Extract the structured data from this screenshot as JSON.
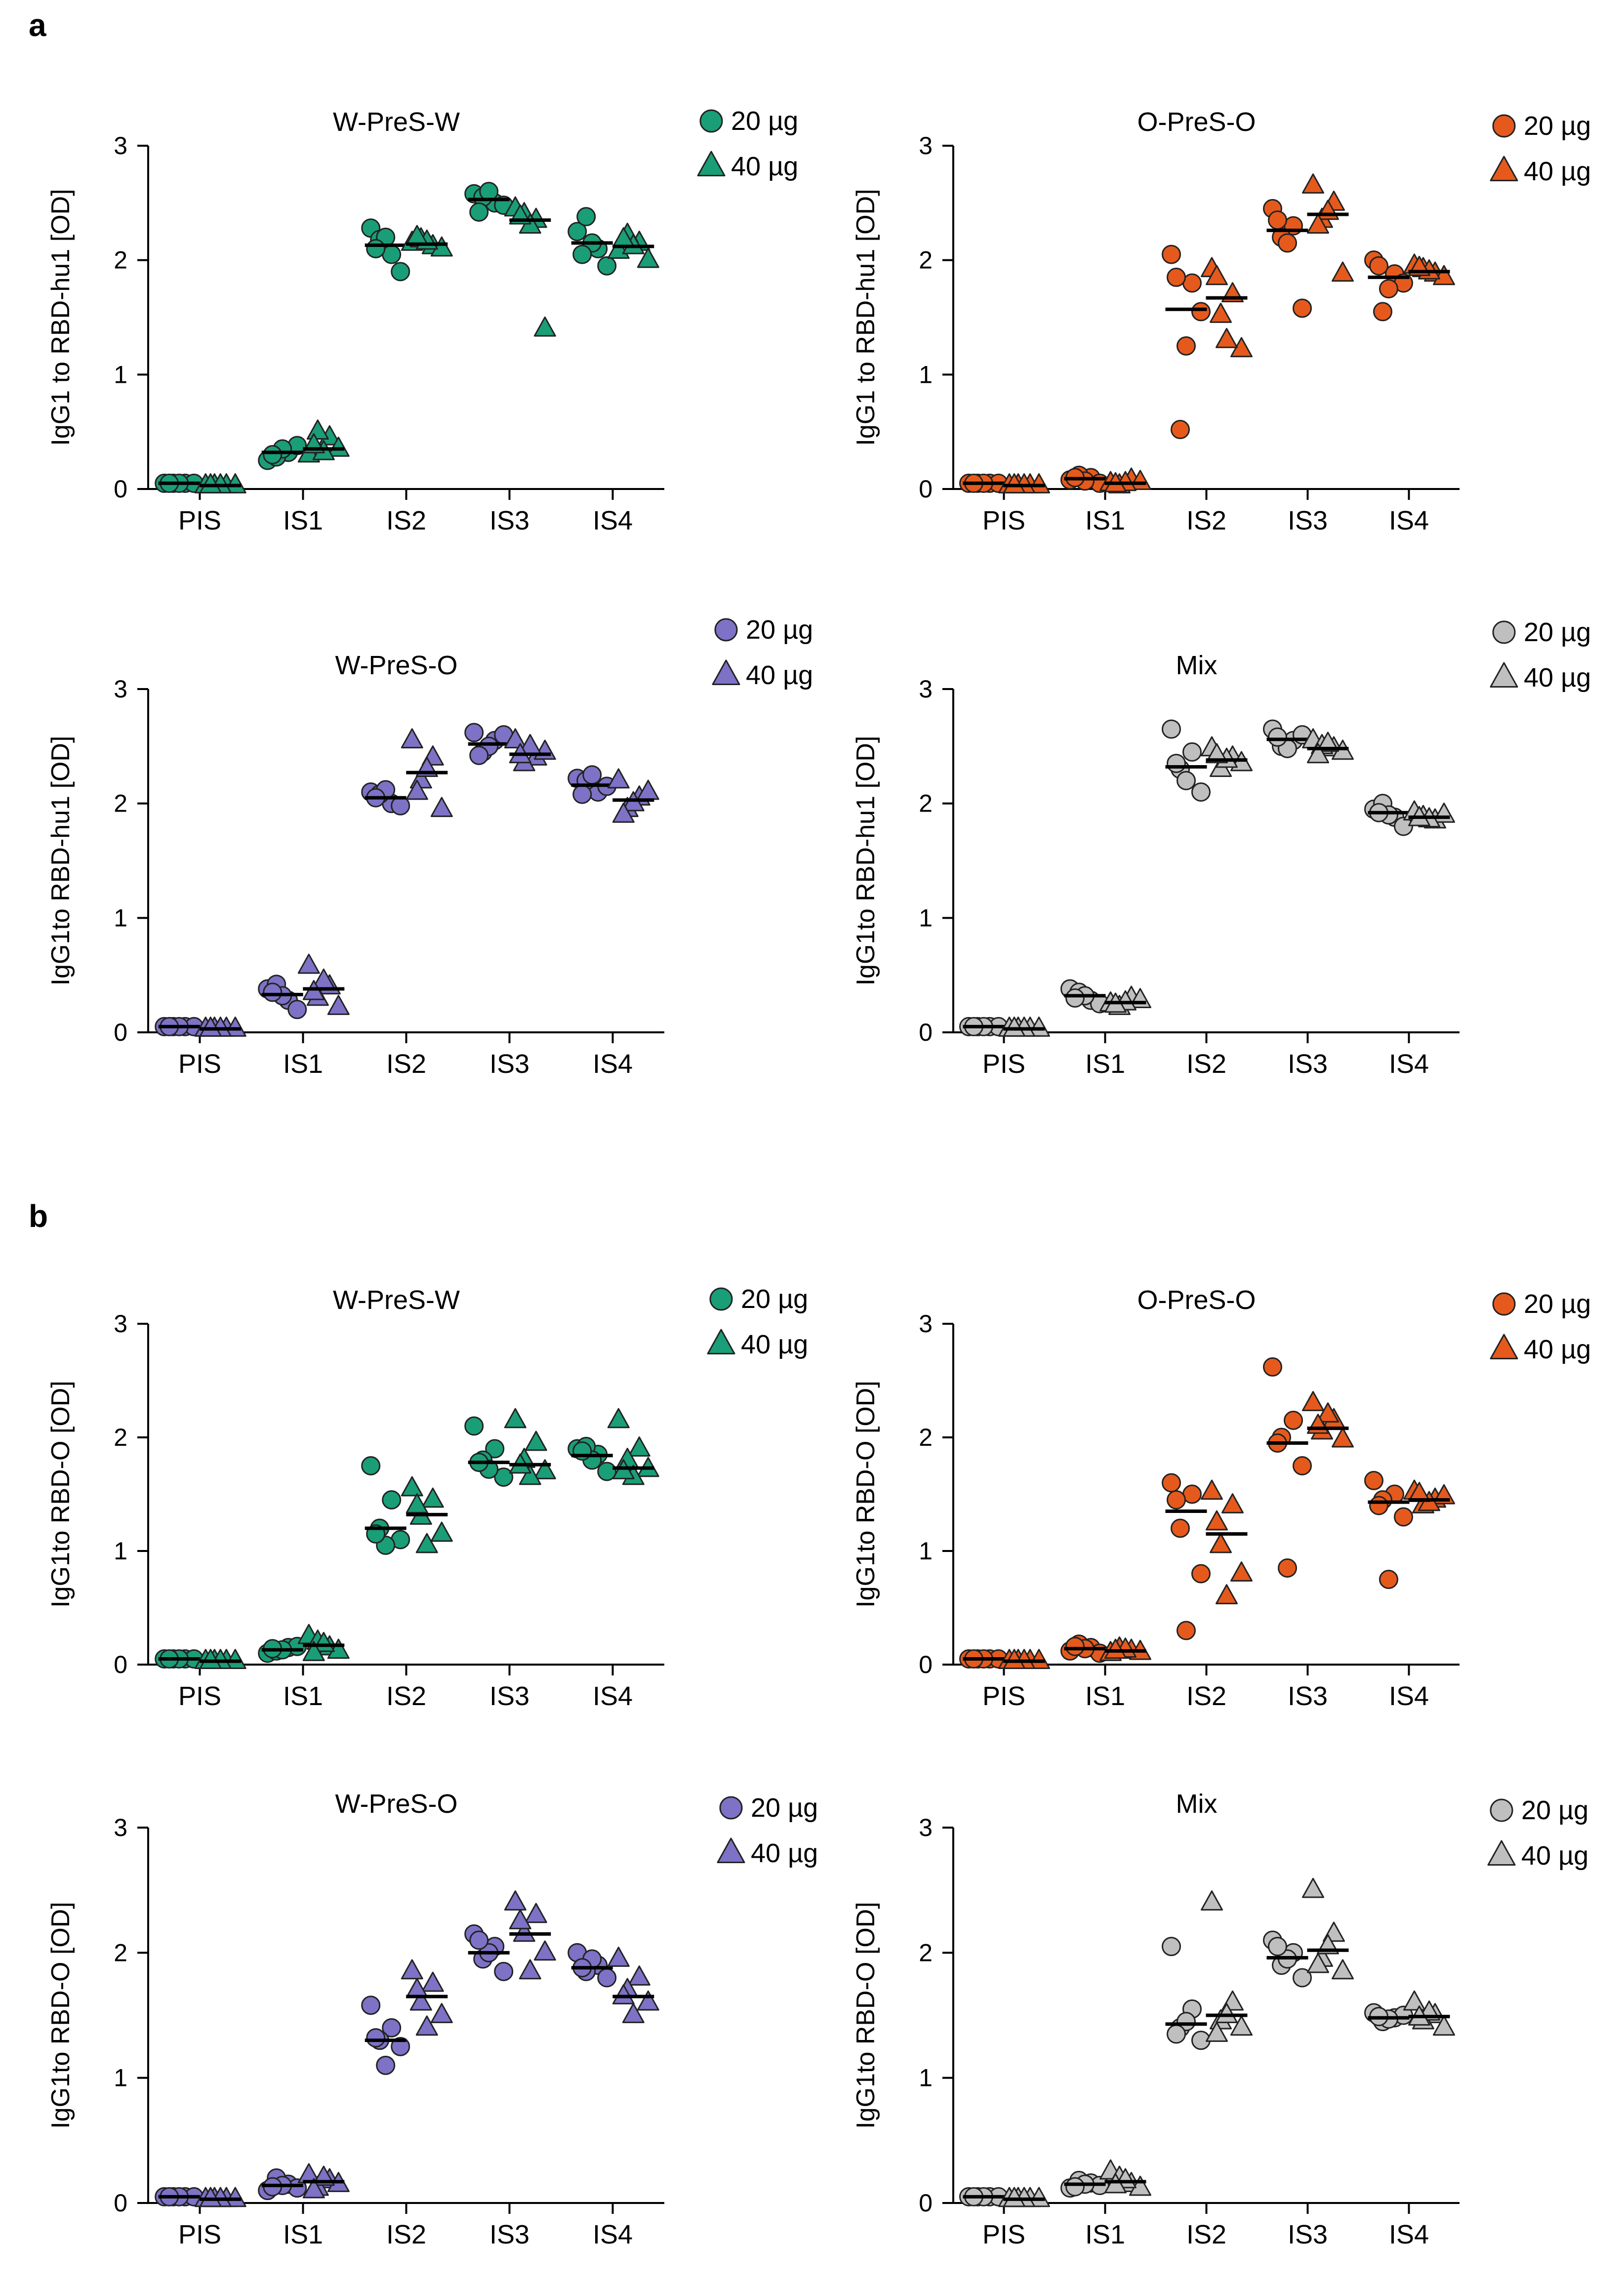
{
  "figure": {
    "panel_labels": [
      "a",
      "b"
    ],
    "categories": [
      "PIS",
      "IS1",
      "IS2",
      "IS3",
      "IS4"
    ],
    "legend_20": "20 µg",
    "legend_40": "40 µg",
    "colors": {
      "green": "#1a9e77",
      "orange": "#e55a1c",
      "purple": "#7d72c6",
      "grey": "#bfbfbf",
      "outline": "#222222"
    }
  },
  "chart_data": [
    {
      "type": "scatter",
      "panel": "a",
      "title": "W-PreS-W",
      "ylabel": "IgG1 to RBD-hu1 [OD]",
      "color": "green",
      "ylim": [
        0,
        3
      ],
      "yticks": [
        0,
        1,
        2,
        3
      ],
      "categories": [
        "PIS",
        "IS1",
        "IS2",
        "IS3",
        "IS4"
      ],
      "series": [
        {
          "name": "20 µg",
          "marker": "circle",
          "values": [
            [
              0.05,
              0.05,
              0.05,
              0.05,
              0.05,
              0.05
            ],
            [
              0.25,
              0.32,
              0.28,
              0.38,
              0.35,
              0.3
            ],
            [
              2.28,
              2.05,
              2.18,
              1.9,
              2.2,
              2.1
            ],
            [
              2.58,
              2.5,
              2.55,
              2.48,
              2.6,
              2.42
            ],
            [
              2.25,
              2.1,
              2.38,
              1.95,
              2.15,
              2.05
            ]
          ],
          "means": [
            0.05,
            0.32,
            2.13,
            2.53,
            2.15
          ]
        },
        {
          "name": "40 µg",
          "marker": "triangle",
          "values": [
            [
              0.03,
              0.03,
              0.03,
              0.03,
              0.03,
              0.03
            ],
            [
              0.3,
              0.45,
              0.5,
              0.35,
              0.32,
              0.38
            ],
            [
              2.15,
              2.12,
              2.18,
              2.1,
              2.16,
              2.2
            ],
            [
              2.45,
              2.35,
              2.4,
              1.4,
              2.3,
              2.38
            ],
            [
              2.08,
              2.15,
              2.22,
              2.0,
              2.12,
              2.18
            ]
          ],
          "means": [
            0.03,
            0.35,
            2.14,
            2.35,
            2.12
          ]
        }
      ]
    },
    {
      "type": "scatter",
      "panel": "a",
      "title": "O-PreS-O",
      "ylabel": "IgG1 to RBD-hu1 [OD]",
      "color": "orange",
      "ylim": [
        0,
        3
      ],
      "yticks": [
        0,
        1,
        2,
        3
      ],
      "categories": [
        "PIS",
        "IS1",
        "IS2",
        "IS3",
        "IS4"
      ],
      "series": [
        {
          "name": "20 µg",
          "marker": "circle",
          "values": [
            [
              0.05,
              0.05,
              0.05,
              0.05,
              0.05,
              0.05
            ],
            [
              0.08,
              0.1,
              0.12,
              0.05,
              0.07,
              0.1
            ],
            [
              2.05,
              1.8,
              0.52,
              1.55,
              1.25,
              1.85
            ],
            [
              2.45,
              2.3,
              2.2,
              1.58,
              2.15,
              2.35
            ],
            [
              2.0,
              1.88,
              1.55,
              1.8,
              1.75,
              1.95
            ]
          ],
          "means": [
            0.05,
            0.09,
            1.57,
            2.26,
            1.85
          ]
        },
        {
          "name": "40 µg",
          "marker": "triangle",
          "values": [
            [
              0.03,
              0.03,
              0.03,
              0.03,
              0.03,
              0.03
            ],
            [
              0.05,
              0.08,
              0.03,
              0.06,
              0.05,
              0.04
            ],
            [
              1.92,
              1.7,
              1.52,
              1.22,
              1.3,
              1.85
            ],
            [
              2.65,
              2.5,
              2.35,
              1.88,
              2.42,
              2.3
            ],
            [
              1.95,
              1.88,
              1.92,
              1.85,
              1.9,
              1.93
            ]
          ],
          "means": [
            0.03,
            0.05,
            1.67,
            2.4,
            1.9
          ]
        }
      ]
    },
    {
      "type": "scatter",
      "panel": "a",
      "title": "W-PreS-O",
      "ylabel": "IgG1to RBD-hu1 [OD]",
      "color": "purple",
      "ylim": [
        0,
        3
      ],
      "yticks": [
        0,
        1,
        2,
        3
      ],
      "categories": [
        "PIS",
        "IS1",
        "IS2",
        "IS3",
        "IS4"
      ],
      "series": [
        {
          "name": "20 µg",
          "marker": "circle",
          "values": [
            [
              0.05,
              0.05,
              0.05,
              0.05,
              0.05,
              0.05
            ],
            [
              0.38,
              0.28,
              0.42,
              0.2,
              0.32,
              0.35
            ],
            [
              2.1,
              2.0,
              2.08,
              1.98,
              2.12,
              2.05
            ],
            [
              2.62,
              2.55,
              2.45,
              2.6,
              2.5,
              2.42
            ],
            [
              2.22,
              2.1,
              2.2,
              2.15,
              2.25,
              2.08
            ]
          ],
          "means": [
            0.05,
            0.33,
            2.05,
            2.52,
            2.16
          ]
        },
        {
          "name": "40 µg",
          "marker": "triangle",
          "values": [
            [
              0.03,
              0.03,
              0.03,
              0.03,
              0.03,
              0.03
            ],
            [
              0.58,
              0.4,
              0.3,
              0.22,
              0.45,
              0.35
            ],
            [
              2.55,
              2.4,
              2.2,
              1.95,
              2.3,
              2.1
            ],
            [
              2.55,
              2.4,
              2.35,
              2.45,
              2.5,
              2.42
            ],
            [
              2.2,
              2.05,
              1.95,
              2.1,
              2.0,
              1.9
            ]
          ],
          "means": [
            0.03,
            0.38,
            2.27,
            2.43,
            2.03
          ]
        }
      ]
    },
    {
      "type": "scatter",
      "panel": "a",
      "title": "Mix",
      "ylabel": "IgG1to RBD-hu1 [OD]",
      "color": "grey",
      "ylim": [
        0,
        3
      ],
      "yticks": [
        0,
        1,
        2,
        3
      ],
      "categories": [
        "PIS",
        "IS1",
        "IS2",
        "IS3",
        "IS4"
      ],
      "series": [
        {
          "name": "20 µg",
          "marker": "circle",
          "values": [
            [
              0.05,
              0.05,
              0.05,
              0.05,
              0.05,
              0.05
            ],
            [
              0.38,
              0.28,
              0.35,
              0.25,
              0.32,
              0.3
            ],
            [
              2.65,
              2.45,
              2.3,
              2.1,
              2.2,
              2.35
            ],
            [
              2.65,
              2.55,
              2.5,
              2.6,
              2.48,
              2.58
            ],
            [
              1.95,
              1.88,
              2.0,
              1.8,
              1.9,
              1.92
            ]
          ],
          "means": [
            0.05,
            0.32,
            2.32,
            2.56,
            1.92
          ]
        },
        {
          "name": "40 µg",
          "marker": "triangle",
          "values": [
            [
              0.03,
              0.03,
              0.03,
              0.03,
              0.03,
              0.03
            ],
            [
              0.25,
              0.3,
              0.22,
              0.28,
              0.26,
              0.24
            ],
            [
              2.48,
              2.4,
              2.3,
              2.35,
              2.38,
              2.42
            ],
            [
              2.55,
              2.48,
              2.5,
              2.45,
              2.52,
              2.42
            ],
            [
              1.92,
              1.85,
              1.88,
              1.9,
              1.86,
              1.87
            ]
          ],
          "means": [
            0.03,
            0.26,
            2.38,
            2.48,
            1.88
          ]
        }
      ]
    },
    {
      "type": "scatter",
      "panel": "b",
      "title": "W-PreS-W",
      "ylabel": "IgG1to RBD-O [OD]",
      "color": "green",
      "ylim": [
        0,
        3
      ],
      "yticks": [
        0,
        1,
        2,
        3
      ],
      "categories": [
        "PIS",
        "IS1",
        "IS2",
        "IS3",
        "IS4"
      ],
      "series": [
        {
          "name": "20 µg",
          "marker": "circle",
          "values": [
            [
              0.05,
              0.05,
              0.05,
              0.05,
              0.05,
              0.05
            ],
            [
              0.1,
              0.15,
              0.12,
              0.16,
              0.13,
              0.14
            ],
            [
              1.75,
              1.45,
              1.2,
              1.1,
              1.05,
              1.15
            ],
            [
              2.1,
              1.9,
              1.8,
              1.65,
              1.72,
              1.78
            ],
            [
              1.9,
              1.85,
              1.92,
              1.7,
              1.8,
              1.88
            ]
          ],
          "means": [
            0.05,
            0.13,
            1.2,
            1.78,
            1.84
          ]
        },
        {
          "name": "40 µg",
          "marker": "triangle",
          "values": [
            [
              0.03,
              0.03,
              0.03,
              0.03,
              0.03,
              0.03
            ],
            [
              0.25,
              0.15,
              0.2,
              0.12,
              0.18,
              0.1
            ],
            [
              1.55,
              1.45,
              1.3,
              1.15,
              1.05,
              1.4
            ],
            [
              2.15,
              1.95,
              1.8,
              1.7,
              1.65,
              1.75
            ],
            [
              2.15,
              1.9,
              1.8,
              1.72,
              1.65,
              1.7
            ]
          ],
          "means": [
            0.03,
            0.17,
            1.32,
            1.76,
            1.73
          ]
        }
      ]
    },
    {
      "type": "scatter",
      "panel": "b",
      "title": "O-PreS-O",
      "ylabel": "IgG1to RBD-O [OD]",
      "color": "orange",
      "ylim": [
        0,
        3
      ],
      "yticks": [
        0,
        1,
        2,
        3
      ],
      "categories": [
        "PIS",
        "IS1",
        "IS2",
        "IS3",
        "IS4"
      ],
      "series": [
        {
          "name": "20 µg",
          "marker": "circle",
          "values": [
            [
              0.05,
              0.05,
              0.05,
              0.05,
              0.05,
              0.05
            ],
            [
              0.12,
              0.15,
              0.18,
              0.1,
              0.14,
              0.16
            ],
            [
              1.6,
              1.5,
              1.2,
              0.8,
              0.3,
              1.45
            ],
            [
              2.62,
              2.15,
              2.0,
              1.75,
              0.85,
              1.95
            ],
            [
              1.62,
              1.5,
              1.45,
              1.3,
              0.75,
              1.4
            ]
          ],
          "means": [
            0.05,
            0.14,
            1.35,
            1.95,
            1.43
          ]
        },
        {
          "name": "40 µg",
          "marker": "triangle",
          "values": [
            [
              0.03,
              0.03,
              0.03,
              0.03,
              0.03,
              0.03
            ],
            [
              0.1,
              0.12,
              0.14,
              0.11,
              0.13,
              0.12
            ],
            [
              1.52,
              1.4,
              1.05,
              0.8,
              0.6,
              1.25
            ],
            [
              2.3,
              2.15,
              2.05,
              1.98,
              2.2,
              2.1
            ],
            [
              1.52,
              1.45,
              1.4,
              1.48,
              1.42,
              1.5
            ]
          ],
          "means": [
            0.03,
            0.12,
            1.15,
            2.08,
            1.45
          ]
        }
      ]
    },
    {
      "type": "scatter",
      "panel": "b",
      "title": "W-PreS-O",
      "ylabel": "IgG1to RBD-O [OD]",
      "color": "purple",
      "ylim": [
        0,
        3
      ],
      "yticks": [
        0,
        1,
        2,
        3
      ],
      "categories": [
        "PIS",
        "IS1",
        "IS2",
        "IS3",
        "IS4"
      ],
      "series": [
        {
          "name": "20 µg",
          "marker": "circle",
          "values": [
            [
              0.05,
              0.05,
              0.05,
              0.05,
              0.05,
              0.05
            ],
            [
              0.1,
              0.15,
              0.2,
              0.12,
              0.14,
              0.13
            ],
            [
              1.58,
              1.4,
              1.3,
              1.25,
              1.1,
              1.32
            ],
            [
              2.15,
              2.05,
              1.95,
              1.85,
              2.0,
              2.1
            ],
            [
              2.0,
              1.9,
              1.85,
              1.8,
              1.95,
              1.88
            ]
          ],
          "means": [
            0.05,
            0.14,
            1.3,
            2.0,
            1.88
          ]
        },
        {
          "name": "40 µg",
          "marker": "triangle",
          "values": [
            [
              0.03,
              0.03,
              0.03,
              0.03,
              0.03,
              0.03
            ],
            [
              0.22,
              0.18,
              0.12,
              0.15,
              0.2,
              0.1
            ],
            [
              1.85,
              1.75,
              1.6,
              1.5,
              1.4,
              1.7
            ],
            [
              2.4,
              2.3,
              2.15,
              2.0,
              1.85,
              2.25
            ],
            [
              1.95,
              1.8,
              1.7,
              1.6,
              1.5,
              1.65
            ]
          ],
          "means": [
            0.03,
            0.17,
            1.65,
            2.15,
            1.65
          ]
        }
      ]
    },
    {
      "type": "scatter",
      "panel": "b",
      "title": "Mix",
      "ylabel": "IgG1to RBD-O [OD]",
      "color": "grey",
      "ylim": [
        0,
        3
      ],
      "yticks": [
        0,
        1,
        2,
        3
      ],
      "categories": [
        "PIS",
        "IS1",
        "IS2",
        "IS3",
        "IS4"
      ],
      "series": [
        {
          "name": "20 µg",
          "marker": "circle",
          "values": [
            [
              0.05,
              0.05,
              0.05,
              0.05,
              0.05,
              0.05
            ],
            [
              0.12,
              0.16,
              0.18,
              0.14,
              0.15,
              0.13
            ],
            [
              2.05,
              1.55,
              1.4,
              1.3,
              1.45,
              1.35
            ],
            [
              2.1,
              2.0,
              1.9,
              1.8,
              1.95,
              2.05
            ],
            [
              1.52,
              1.48,
              1.45,
              1.5,
              1.47,
              1.49
            ]
          ],
          "means": [
            0.05,
            0.15,
            1.43,
            1.96,
            1.48
          ]
        },
        {
          "name": "40 µg",
          "marker": "triangle",
          "values": [
            [
              0.03,
              0.03,
              0.03,
              0.03,
              0.03,
              0.03
            ],
            [
              0.25,
              0.15,
              0.2,
              0.12,
              0.18,
              0.14
            ],
            [
              2.4,
              1.6,
              1.45,
              1.4,
              1.5,
              1.35
            ],
            [
              2.5,
              2.15,
              1.95,
              1.85,
              2.05,
              1.9
            ],
            [
              1.6,
              1.5,
              1.45,
              1.4,
              1.52,
              1.48
            ]
          ],
          "means": [
            0.03,
            0.17,
            1.5,
            2.02,
            1.49
          ]
        }
      ]
    }
  ]
}
